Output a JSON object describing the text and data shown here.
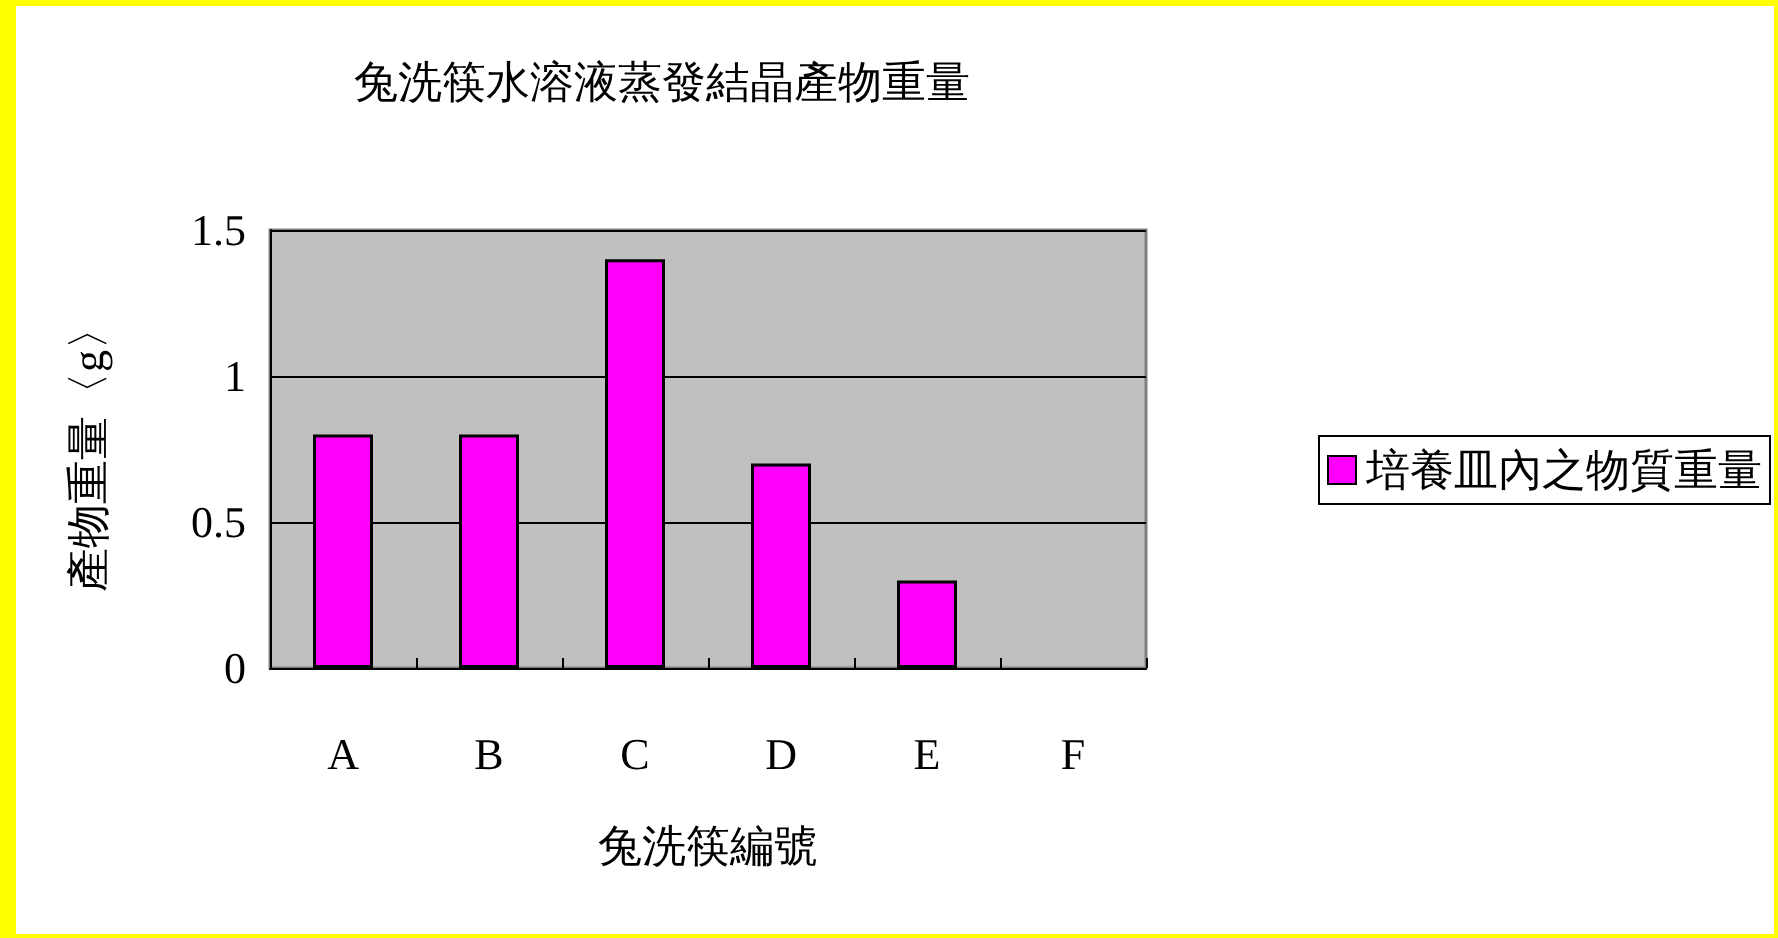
{
  "chart_data": {
    "type": "bar",
    "title": "兔洗筷水溶液蒸發結晶產物重量",
    "xlabel": "兔洗筷編號",
    "ylabel": "產物重量〈g〉",
    "categories": [
      "A",
      "B",
      "C",
      "D",
      "E",
      "F"
    ],
    "series": [
      {
        "name": "培養皿內之物質重量",
        "color": "#ff00ff",
        "values": [
          0.8,
          0.8,
          1.4,
          0.7,
          0.3,
          0
        ]
      }
    ],
    "ylim": [
      0,
      1.5
    ],
    "yticks": [
      0,
      0.5,
      1,
      1.5
    ],
    "grid": "y",
    "legend": "right"
  }
}
